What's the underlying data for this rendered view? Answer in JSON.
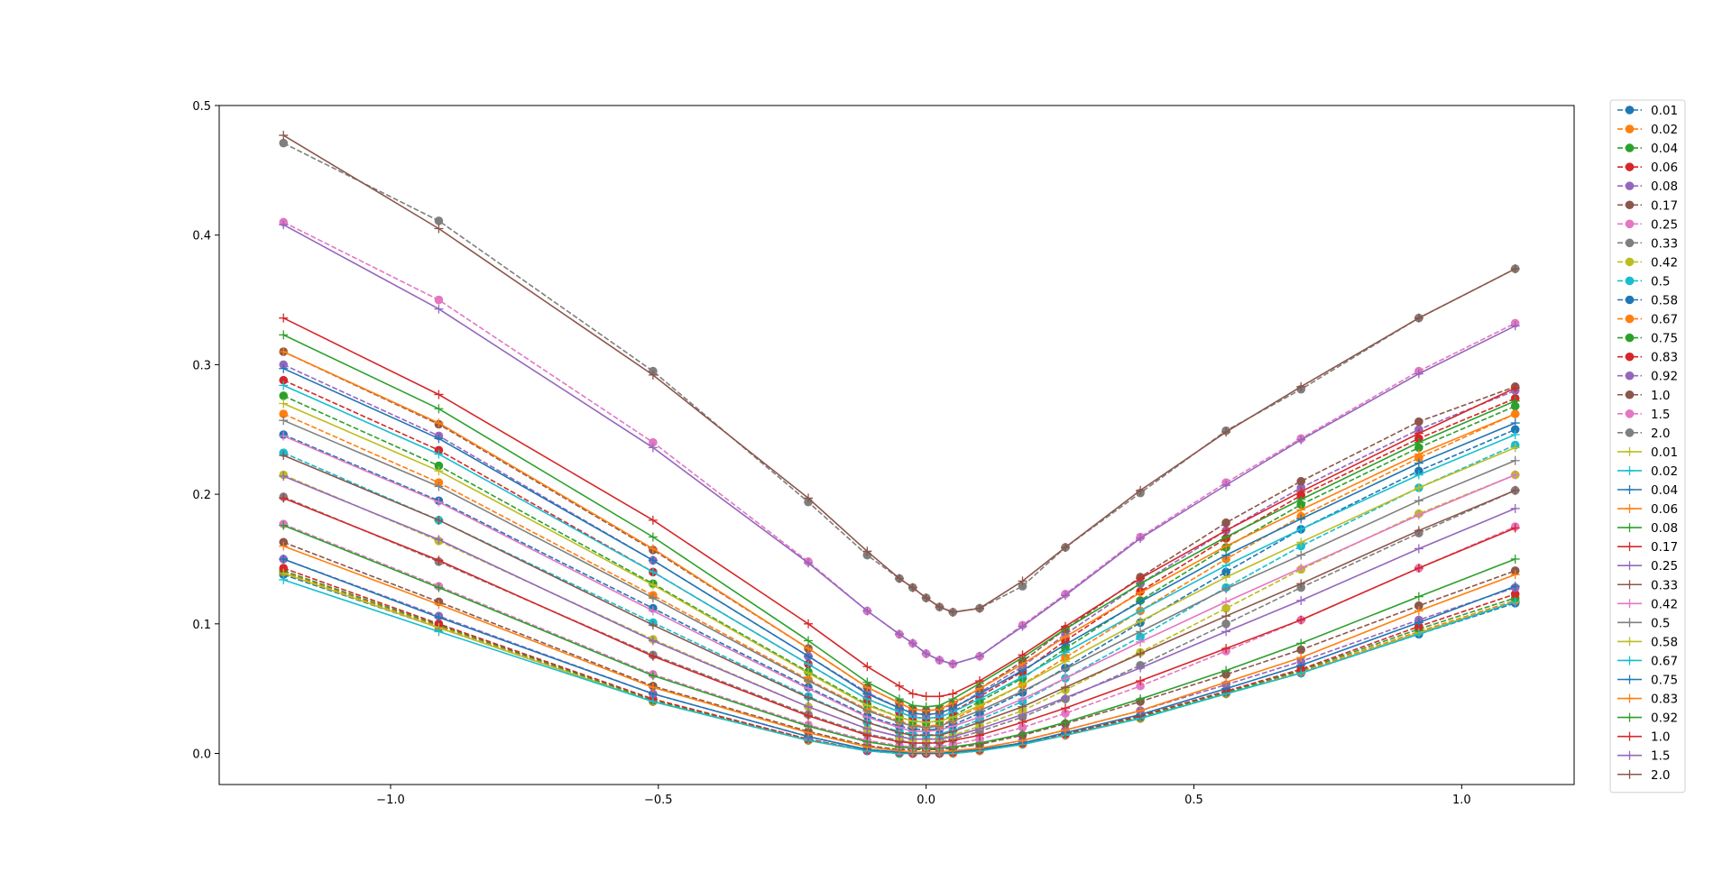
{
  "chart_data": {
    "type": "line",
    "title": "",
    "xlabel": "",
    "ylabel": "",
    "xlim": [
      -1.32,
      1.21
    ],
    "ylim": [
      -0.024,
      0.5
    ],
    "xticks": [
      -1.0,
      -0.5,
      0.0,
      0.5,
      1.0
    ],
    "xtick_labels": [
      "−1.0",
      "−0.5",
      "0.0",
      "0.5",
      "1.0"
    ],
    "yticks": [
      0.0,
      0.1,
      0.2,
      0.3,
      0.4,
      0.5
    ],
    "ytick_labels": [
      "0.0",
      "0.1",
      "0.2",
      "0.3",
      "0.4",
      "0.5"
    ],
    "grid": false,
    "legend_position": "outside-right",
    "x": [
      -1.2,
      -0.91,
      -0.51,
      -0.22,
      -0.11,
      -0.05,
      -0.025,
      0.0,
      0.025,
      0.05,
      0.1,
      0.18,
      0.26,
      0.4,
      0.56,
      0.7,
      0.92,
      1.1
    ],
    "series": [
      {
        "name": "0.01",
        "style": "dashed",
        "marker": "circle",
        "color": "#1f77b4",
        "values": [
          0.138,
          0.097,
          0.04,
          0.01,
          0.002,
          0.0,
          0.0,
          0.0,
          0.0,
          0.0,
          0.002,
          0.007,
          0.014,
          0.027,
          0.046,
          0.062,
          0.092,
          0.116
        ]
      },
      {
        "name": "0.02",
        "style": "dashed",
        "marker": "circle",
        "color": "#ff7f0e",
        "values": [
          0.14,
          0.098,
          0.04,
          0.01,
          0.002,
          0.0,
          0.0,
          0.0,
          0.0,
          0.0,
          0.002,
          0.007,
          0.014,
          0.027,
          0.046,
          0.063,
          0.094,
          0.118
        ]
      },
      {
        "name": "0.04",
        "style": "dashed",
        "marker": "circle",
        "color": "#2ca02c",
        "values": [
          0.141,
          0.099,
          0.041,
          0.011,
          0.002,
          0.0,
          0.0,
          0.0,
          0.0,
          0.001,
          0.003,
          0.008,
          0.015,
          0.028,
          0.047,
          0.064,
          0.096,
          0.12
        ]
      },
      {
        "name": "0.06",
        "style": "dashed",
        "marker": "circle",
        "color": "#d62728",
        "values": [
          0.143,
          0.1,
          0.042,
          0.011,
          0.002,
          0.001,
          0.0,
          0.0,
          0.0,
          0.001,
          0.003,
          0.008,
          0.015,
          0.029,
          0.048,
          0.065,
          0.098,
          0.123
        ]
      },
      {
        "name": "0.08",
        "style": "dashed",
        "marker": "circle",
        "color": "#9467bd",
        "values": [
          0.15,
          0.106,
          0.046,
          0.013,
          0.003,
          0.001,
          0.001,
          0.001,
          0.001,
          0.002,
          0.004,
          0.01,
          0.018,
          0.033,
          0.053,
          0.071,
          0.103,
          0.128
        ]
      },
      {
        "name": "0.17",
        "style": "dashed",
        "marker": "circle",
        "color": "#8c564b",
        "values": [
          0.163,
          0.117,
          0.052,
          0.017,
          0.006,
          0.003,
          0.003,
          0.003,
          0.003,
          0.004,
          0.007,
          0.014,
          0.023,
          0.04,
          0.061,
          0.08,
          0.114,
          0.141
        ]
      },
      {
        "name": "0.25",
        "style": "dashed",
        "marker": "circle",
        "color": "#e377c2",
        "values": [
          0.177,
          0.129,
          0.061,
          0.022,
          0.01,
          0.006,
          0.005,
          0.005,
          0.005,
          0.007,
          0.011,
          0.02,
          0.031,
          0.052,
          0.079,
          0.103,
          0.143,
          0.175
        ]
      },
      {
        "name": "0.33",
        "style": "dashed",
        "marker": "circle",
        "color": "#7f7f7f",
        "values": [
          0.198,
          0.148,
          0.076,
          0.03,
          0.015,
          0.01,
          0.008,
          0.008,
          0.009,
          0.011,
          0.017,
          0.028,
          0.042,
          0.068,
          0.1,
          0.128,
          0.17,
          0.203
        ]
      },
      {
        "name": "0.42",
        "style": "dashed",
        "marker": "circle",
        "color": "#bcbd22",
        "values": [
          0.215,
          0.164,
          0.088,
          0.036,
          0.019,
          0.013,
          0.011,
          0.011,
          0.012,
          0.014,
          0.021,
          0.033,
          0.049,
          0.078,
          0.112,
          0.142,
          0.185,
          0.215
        ]
      },
      {
        "name": "0.5",
        "style": "dashed",
        "marker": "circle",
        "color": "#17becf",
        "values": [
          0.232,
          0.18,
          0.101,
          0.044,
          0.024,
          0.017,
          0.015,
          0.014,
          0.015,
          0.018,
          0.026,
          0.04,
          0.058,
          0.09,
          0.128,
          0.16,
          0.205,
          0.238
        ]
      },
      {
        "name": "0.58",
        "style": "dashed",
        "marker": "circle",
        "color": "#1f77b4",
        "values": [
          0.246,
          0.195,
          0.112,
          0.051,
          0.029,
          0.021,
          0.019,
          0.018,
          0.019,
          0.022,
          0.031,
          0.047,
          0.066,
          0.101,
          0.14,
          0.173,
          0.218,
          0.25
        ]
      },
      {
        "name": "0.67",
        "style": "dashed",
        "marker": "circle",
        "color": "#ff7f0e",
        "values": [
          0.262,
          0.209,
          0.122,
          0.057,
          0.034,
          0.025,
          0.022,
          0.021,
          0.022,
          0.026,
          0.036,
          0.053,
          0.074,
          0.11,
          0.15,
          0.183,
          0.228,
          0.262
        ]
      },
      {
        "name": "0.75",
        "style": "dashed",
        "marker": "circle",
        "color": "#2ca02c",
        "values": [
          0.276,
          0.222,
          0.131,
          0.063,
          0.038,
          0.028,
          0.025,
          0.024,
          0.025,
          0.029,
          0.04,
          0.058,
          0.081,
          0.118,
          0.159,
          0.192,
          0.236,
          0.268
        ]
      },
      {
        "name": "0.83",
        "style": "dashed",
        "marker": "circle",
        "color": "#d62728",
        "values": [
          0.288,
          0.234,
          0.14,
          0.069,
          0.042,
          0.032,
          0.028,
          0.027,
          0.028,
          0.032,
          0.044,
          0.063,
          0.087,
          0.125,
          0.166,
          0.199,
          0.243,
          0.274
        ]
      },
      {
        "name": "0.92",
        "style": "dashed",
        "marker": "circle",
        "color": "#9467bd",
        "values": [
          0.3,
          0.245,
          0.149,
          0.075,
          0.047,
          0.035,
          0.031,
          0.03,
          0.031,
          0.035,
          0.047,
          0.067,
          0.092,
          0.131,
          0.172,
          0.205,
          0.25,
          0.28
        ]
      },
      {
        "name": "1.0",
        "style": "dashed",
        "marker": "circle",
        "color": "#8c564b",
        "values": [
          0.31,
          0.254,
          0.157,
          0.081,
          0.051,
          0.039,
          0.034,
          0.033,
          0.034,
          0.038,
          0.05,
          0.071,
          0.096,
          0.136,
          0.178,
          0.21,
          0.256,
          0.283
        ]
      },
      {
        "name": "1.5",
        "style": "dashed",
        "marker": "circle",
        "color": "#e377c2",
        "values": [
          0.41,
          0.35,
          0.24,
          0.148,
          0.11,
          0.092,
          0.085,
          0.077,
          0.072,
          0.069,
          0.075,
          0.099,
          0.123,
          0.167,
          0.209,
          0.243,
          0.295,
          0.332
        ]
      },
      {
        "name": "2.0",
        "style": "dashed",
        "marker": "circle",
        "color": "#7f7f7f",
        "values": [
          0.471,
          0.411,
          0.295,
          0.194,
          0.153,
          0.135,
          0.128,
          0.12,
          0.113,
          0.109,
          0.112,
          0.129,
          0.159,
          0.201,
          0.249,
          0.281,
          0.336,
          0.374
        ]
      },
      {
        "name": "0.01",
        "style": "solid",
        "marker": "plus",
        "color": "#bcbd22",
        "values": [
          0.139,
          0.097,
          0.04,
          0.01,
          0.002,
          0.0,
          0.0,
          0.0,
          0.0,
          0.0,
          0.002,
          0.007,
          0.014,
          0.027,
          0.046,
          0.062,
          0.093,
          0.117
        ]
      },
      {
        "name": "0.02",
        "style": "solid",
        "marker": "plus",
        "color": "#17becf",
        "values": [
          0.134,
          0.094,
          0.04,
          0.01,
          0.002,
          0.0,
          0.0,
          0.0,
          0.0,
          0.0,
          0.002,
          0.007,
          0.014,
          0.027,
          0.046,
          0.062,
          0.092,
          0.117
        ]
      },
      {
        "name": "0.04",
        "style": "solid",
        "marker": "plus",
        "color": "#1f77b4",
        "values": [
          0.15,
          0.105,
          0.046,
          0.013,
          0.003,
          0.001,
          0.0,
          0.0,
          0.0,
          0.001,
          0.003,
          0.008,
          0.016,
          0.03,
          0.05,
          0.068,
          0.101,
          0.129
        ]
      },
      {
        "name": "0.06",
        "style": "solid",
        "marker": "plus",
        "color": "#ff7f0e",
        "values": [
          0.16,
          0.115,
          0.051,
          0.016,
          0.005,
          0.002,
          0.001,
          0.001,
          0.001,
          0.002,
          0.004,
          0.01,
          0.018,
          0.033,
          0.055,
          0.074,
          0.11,
          0.138
        ]
      },
      {
        "name": "0.08",
        "style": "solid",
        "marker": "plus",
        "color": "#2ca02c",
        "values": [
          0.176,
          0.128,
          0.06,
          0.021,
          0.009,
          0.005,
          0.004,
          0.004,
          0.004,
          0.005,
          0.008,
          0.015,
          0.024,
          0.042,
          0.064,
          0.085,
          0.121,
          0.15
        ]
      },
      {
        "name": "0.17",
        "style": "solid",
        "marker": "plus",
        "color": "#d62728",
        "values": [
          0.197,
          0.149,
          0.075,
          0.029,
          0.014,
          0.009,
          0.008,
          0.008,
          0.008,
          0.01,
          0.014,
          0.024,
          0.035,
          0.056,
          0.081,
          0.103,
          0.143,
          0.174
        ]
      },
      {
        "name": "0.25",
        "style": "solid",
        "marker": "plus",
        "color": "#9467bd",
        "values": [
          0.214,
          0.165,
          0.087,
          0.036,
          0.019,
          0.013,
          0.011,
          0.011,
          0.011,
          0.013,
          0.019,
          0.03,
          0.043,
          0.066,
          0.094,
          0.118,
          0.158,
          0.189
        ]
      },
      {
        "name": "0.33",
        "style": "solid",
        "marker": "plus",
        "color": "#8c564b",
        "values": [
          0.23,
          0.18,
          0.099,
          0.043,
          0.024,
          0.016,
          0.014,
          0.014,
          0.014,
          0.017,
          0.024,
          0.036,
          0.051,
          0.077,
          0.106,
          0.131,
          0.172,
          0.203
        ]
      },
      {
        "name": "0.42",
        "style": "solid",
        "marker": "plus",
        "color": "#e377c2",
        "values": [
          0.245,
          0.194,
          0.11,
          0.05,
          0.028,
          0.02,
          0.017,
          0.017,
          0.018,
          0.021,
          0.028,
          0.042,
          0.058,
          0.086,
          0.117,
          0.143,
          0.184,
          0.215
        ]
      },
      {
        "name": "0.5",
        "style": "solid",
        "marker": "plus",
        "color": "#7f7f7f",
        "values": [
          0.257,
          0.206,
          0.12,
          0.056,
          0.033,
          0.024,
          0.021,
          0.02,
          0.021,
          0.025,
          0.033,
          0.048,
          0.065,
          0.094,
          0.127,
          0.153,
          0.195,
          0.226
        ]
      },
      {
        "name": "0.58",
        "style": "solid",
        "marker": "plus",
        "color": "#bcbd22",
        "values": [
          0.27,
          0.218,
          0.13,
          0.062,
          0.037,
          0.028,
          0.025,
          0.024,
          0.025,
          0.028,
          0.037,
          0.053,
          0.071,
          0.102,
          0.136,
          0.163,
          0.205,
          0.236
        ]
      },
      {
        "name": "0.67",
        "style": "solid",
        "marker": "plus",
        "color": "#17becf",
        "values": [
          0.284,
          0.231,
          0.14,
          0.069,
          0.042,
          0.032,
          0.028,
          0.027,
          0.028,
          0.032,
          0.042,
          0.059,
          0.078,
          0.11,
          0.145,
          0.173,
          0.215,
          0.246
        ]
      },
      {
        "name": "0.75",
        "style": "solid",
        "marker": "plus",
        "color": "#1f77b4",
        "values": [
          0.297,
          0.243,
          0.149,
          0.075,
          0.046,
          0.035,
          0.031,
          0.03,
          0.031,
          0.035,
          0.046,
          0.064,
          0.084,
          0.117,
          0.153,
          0.181,
          0.224,
          0.255
        ]
      },
      {
        "name": "0.83",
        "style": "solid",
        "marker": "plus",
        "color": "#ff7f0e",
        "values": [
          0.31,
          0.255,
          0.158,
          0.081,
          0.051,
          0.039,
          0.034,
          0.033,
          0.034,
          0.039,
          0.05,
          0.069,
          0.09,
          0.124,
          0.16,
          0.188,
          0.231,
          0.262
        ]
      },
      {
        "name": "0.92",
        "style": "solid",
        "marker": "plus",
        "color": "#2ca02c",
        "values": [
          0.323,
          0.266,
          0.167,
          0.087,
          0.055,
          0.042,
          0.037,
          0.036,
          0.037,
          0.042,
          0.054,
          0.074,
          0.096,
          0.131,
          0.167,
          0.196,
          0.24,
          0.272
        ]
      },
      {
        "name": "1.0",
        "style": "solid",
        "marker": "plus",
        "color": "#d62728",
        "values": [
          0.336,
          0.277,
          0.18,
          0.1,
          0.067,
          0.052,
          0.046,
          0.044,
          0.044,
          0.046,
          0.056,
          0.076,
          0.098,
          0.135,
          0.172,
          0.202,
          0.247,
          0.282
        ]
      },
      {
        "name": "1.5",
        "style": "solid",
        "marker": "plus",
        "color": "#9467bd",
        "values": [
          0.408,
          0.343,
          0.236,
          0.147,
          0.11,
          0.092,
          0.085,
          0.077,
          0.072,
          0.069,
          0.075,
          0.098,
          0.122,
          0.166,
          0.207,
          0.242,
          0.293,
          0.33
        ]
      },
      {
        "name": "2.0",
        "style": "solid",
        "marker": "plus",
        "color": "#8c564b",
        "values": [
          0.477,
          0.405,
          0.292,
          0.197,
          0.156,
          0.135,
          0.128,
          0.12,
          0.113,
          0.109,
          0.112,
          0.133,
          0.159,
          0.203,
          0.248,
          0.283,
          0.336,
          0.374
        ]
      }
    ]
  }
}
